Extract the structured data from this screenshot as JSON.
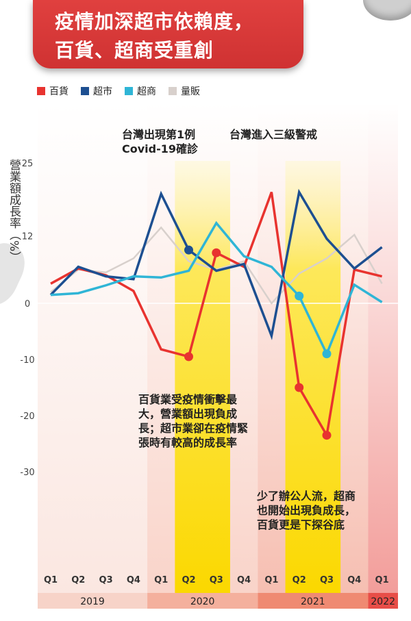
{
  "title": {
    "line1": "疫情加深超市依賴度，",
    "line2": "百貨、超商受重創"
  },
  "chart_data": {
    "type": "line",
    "ylabel": "營業額成長率（%）",
    "y_ticks": [
      25,
      12,
      0,
      -10,
      -20,
      -30
    ],
    "ylim": [
      -40,
      27
    ],
    "categories": [
      "Q1",
      "Q2",
      "Q3",
      "Q4",
      "Q1",
      "Q2",
      "Q3",
      "Q4",
      "Q1",
      "Q2",
      "Q3",
      "Q4",
      "Q1"
    ],
    "years": [
      {
        "label": "2019",
        "start": 0,
        "end": 3,
        "color": "#f7d3c8"
      },
      {
        "label": "2020",
        "start": 4,
        "end": 7,
        "color": "#f4b09d"
      },
      {
        "label": "2021",
        "start": 8,
        "end": 11,
        "color": "#ef8a72"
      },
      {
        "label": "2022",
        "start": 12,
        "end": 12,
        "color": "#e84e48"
      }
    ],
    "highlight_periods": [
      [
        5,
        6
      ],
      [
        9,
        10
      ]
    ],
    "series": [
      {
        "name": "百貨",
        "color": "#e8332f",
        "values": [
          3.5,
          6.2,
          5.0,
          2.2,
          -8.2,
          -9.5,
          9.0,
          6.5,
          19.8,
          -15.0,
          -23.5,
          6.0,
          4.8
        ],
        "markers": [
          5,
          6,
          9,
          10
        ]
      },
      {
        "name": "超市",
        "color": "#1d4f91",
        "values": [
          1.5,
          6.5,
          4.8,
          4.3,
          19.5,
          9.5,
          5.8,
          7.0,
          -5.8,
          19.8,
          11.5,
          6.2,
          10.0
        ],
        "markers": [
          5
        ]
      },
      {
        "name": "超商",
        "color": "#2fb5d6",
        "values": [
          1.5,
          1.8,
          3.2,
          4.8,
          4.6,
          5.8,
          14.3,
          8.4,
          6.5,
          1.3,
          -9.0,
          3.3,
          0.2
        ],
        "markers": [
          9,
          10
        ]
      },
      {
        "name": "量販",
        "color": "#d8d0cc",
        "values": [
          2.0,
          6.0,
          5.5,
          8.0,
          13.5,
          7.5,
          6.0,
          7.5,
          0.0,
          5.3,
          8.0,
          12.2,
          3.5
        ],
        "markers": []
      }
    ],
    "annotations": [
      {
        "text": "台灣出現第1例\nCovid-19確診"
      },
      {
        "text": "台灣進入三級警戒"
      },
      {
        "text": "百貨業受疫情衝擊最\n大，營業額出現負成\n長；超市業卻在疫情緊\n張時有較高的成長率"
      },
      {
        "text": "少了辦公人流，超商\n也開始出現負成長，\n百貨更是下探谷底"
      }
    ]
  }
}
